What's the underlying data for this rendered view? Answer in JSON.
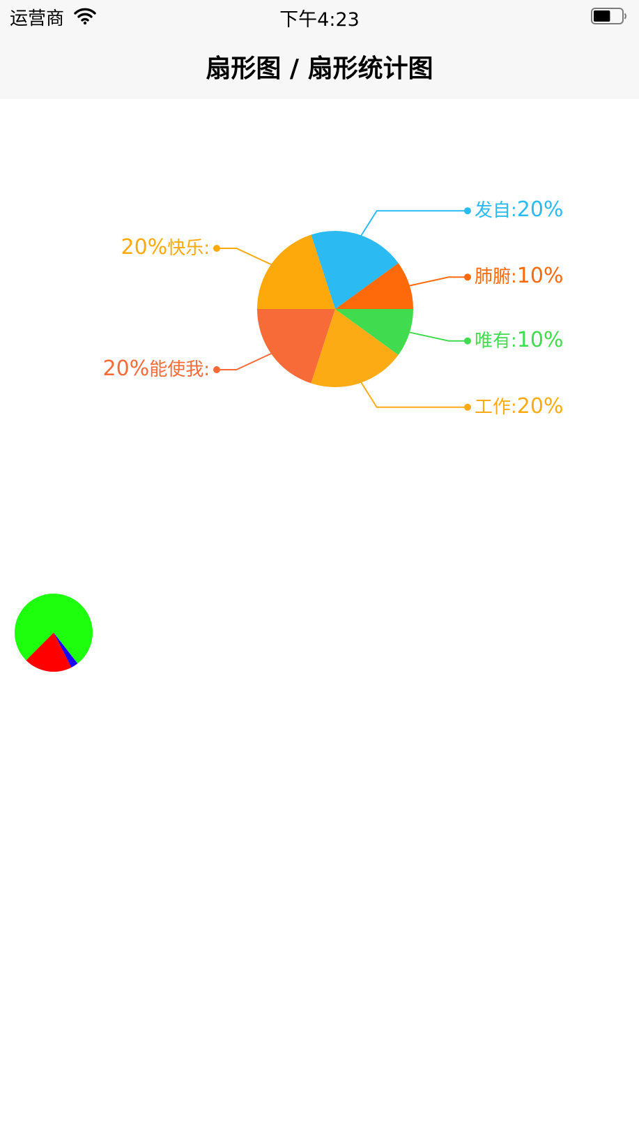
{
  "status_bar": {
    "carrier": "运营商",
    "time": "下午4:23",
    "wifi_icon": "wifi-icon",
    "battery_icon": "battery-icon",
    "battery_level": 0.6
  },
  "nav": {
    "title": "扇形图 / 扇形统计图"
  },
  "chart_data": [
    {
      "type": "pie",
      "slices": [
        {
          "name": "肺腑",
          "value": 10,
          "label": "10%",
          "color": "#fe6a0a",
          "label_side": "right",
          "name_first": true
        },
        {
          "name": "发自",
          "value": 20,
          "label": "20%",
          "color": "#2bbbf2",
          "label_side": "right",
          "name_first": true
        },
        {
          "name": "快乐",
          "value": 20,
          "label": "20%",
          "color": "#fda90c",
          "label_side": "left",
          "name_first": false
        },
        {
          "name": "能使我",
          "value": 20,
          "label": "20%",
          "color": "#f76b38",
          "label_side": "left",
          "name_first": false
        },
        {
          "name": "工作",
          "value": 20,
          "label": "20%",
          "color": "#fdab14",
          "label_side": "right",
          "name_first": true
        },
        {
          "name": "唯有",
          "value": 10,
          "label": "10%",
          "color": "#41db4f",
          "label_side": "right",
          "name_first": true
        }
      ],
      "separator": ":"
    },
    {
      "type": "pie",
      "slices": [
        {
          "value": 0.77,
          "color": "#1eff0e"
        },
        {
          "value": 0.03,
          "color": "#1a00ff"
        },
        {
          "value": 0.2,
          "color": "#ff0000"
        }
      ]
    }
  ]
}
